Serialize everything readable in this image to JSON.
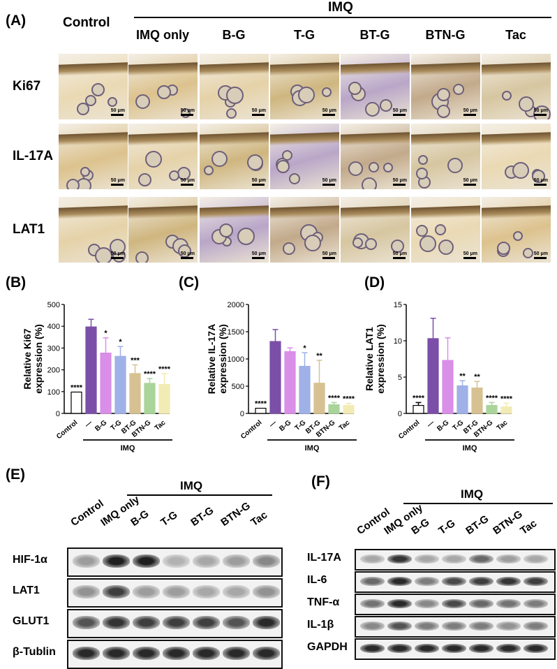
{
  "panels": {
    "A": "(A)",
    "B": "(B)",
    "C": "(C)",
    "D": "(D)",
    "E": "(E)",
    "F": "(F)"
  },
  "histology": {
    "control_title": "Control",
    "group_title": "IMQ",
    "columns": [
      "IMQ only",
      "B-G",
      "T-G",
      "BT-G",
      "BTN-G",
      "Tac"
    ],
    "rows": [
      "Ki67",
      "IL-17A",
      "LAT1"
    ],
    "scale_bar": "50 μm"
  },
  "chart_data": [
    {
      "type": "bar",
      "panel": "B",
      "ylabel_line1": "Relative  Ki67",
      "ylabel_line2": "expression (%)",
      "ylim": [
        0,
        500
      ],
      "yticks": [
        0,
        100,
        200,
        300,
        400,
        500
      ],
      "categories": [
        "Control",
        "—",
        "B-G",
        "T-G",
        "BT-G",
        "BTN-G",
        "Tac"
      ],
      "values": [
        98,
        397,
        277,
        262,
        183,
        138,
        133
      ],
      "errors": [
        0,
        35,
        70,
        45,
        40,
        22,
        50
      ],
      "significance": [
        "****",
        "",
        "*",
        "*",
        "***",
        "****",
        "****"
      ],
      "group_label": "IMQ"
    },
    {
      "type": "bar",
      "panel": "C",
      "ylabel_line1": "Relative  IL-17A",
      "ylabel_line2": "expression (%)",
      "ylim": [
        0,
        2000
      ],
      "yticks": [
        0,
        500,
        1000,
        1500,
        2000
      ],
      "categories": [
        "Control",
        "—",
        "B-G",
        "T-G",
        "BT-G",
        "BTN-G",
        "Tac"
      ],
      "values": [
        95,
        1320,
        1135,
        865,
        555,
        160,
        145
      ],
      "errors": [
        0,
        220,
        70,
        250,
        420,
        40,
        40
      ],
      "significance": [
        "****",
        "",
        "",
        "*",
        "**",
        "****",
        "****"
      ],
      "group_label": "IMQ"
    },
    {
      "type": "bar",
      "panel": "D",
      "ylabel_line1": "Relative  LAT1",
      "ylabel_line2": "expression (%)",
      "ylim": [
        0,
        15
      ],
      "yticks": [
        0,
        5,
        10,
        15
      ],
      "categories": [
        "Control",
        "—",
        "B-G",
        "T-G",
        "BT-G",
        "BTN-G",
        "Tac"
      ],
      "values": [
        1.1,
        10.3,
        7.3,
        3.8,
        3.5,
        1.1,
        0.9
      ],
      "errors": [
        0.4,
        2.8,
        3.1,
        0.7,
        0.9,
        0.4,
        0.5
      ],
      "significance": [
        "****",
        "",
        "",
        "**",
        "**",
        "****",
        "****"
      ],
      "group_label": "IMQ"
    }
  ],
  "colors": {
    "control": "#ffffff",
    "imq": "#7b4fa8",
    "bg": "#d98ee8",
    "tg": "#9fb1e6",
    "btg": "#d7c192",
    "btng": "#a9d49a",
    "tac": "#f2ebb4"
  },
  "blot_E": {
    "group_label": "IMQ",
    "lanes": [
      "Control",
      "IMQ only",
      "B-G",
      "T-G",
      "BT-G",
      "BTN-G",
      "Tac"
    ],
    "rows": [
      {
        "name": "HIF-1α",
        "intensity": [
          0.35,
          0.95,
          0.95,
          0.25,
          0.3,
          0.35,
          0.45
        ]
      },
      {
        "name": "LAT1",
        "intensity": [
          0.4,
          0.8,
          0.35,
          0.35,
          0.3,
          0.3,
          0.4
        ]
      },
      {
        "name": "GLUT1",
        "intensity": [
          0.7,
          0.85,
          0.8,
          0.8,
          0.8,
          0.7,
          0.9
        ]
      },
      {
        "name": "β-Tublin",
        "intensity": [
          0.9,
          0.9,
          0.9,
          0.9,
          0.9,
          0.9,
          0.9
        ]
      }
    ]
  },
  "blot_F": {
    "group_label": "IMQ",
    "lanes": [
      "Control",
      "IMQ only",
      "B-G",
      "T-G",
      "BT-G",
      "BTN-G",
      "Tac"
    ],
    "rows": [
      {
        "name": "IL-17A",
        "intensity": [
          0.3,
          0.85,
          0.3,
          0.3,
          0.6,
          0.35,
          0.3
        ]
      },
      {
        "name": "IL-6",
        "intensity": [
          0.6,
          0.9,
          0.5,
          0.75,
          0.8,
          0.85,
          0.8
        ]
      },
      {
        "name": "TNF-α",
        "intensity": [
          0.55,
          0.9,
          0.45,
          0.75,
          0.6,
          0.55,
          0.5
        ]
      },
      {
        "name": "IL-1β",
        "intensity": [
          0.45,
          0.7,
          0.5,
          0.5,
          0.5,
          0.4,
          0.5
        ]
      },
      {
        "name": "GAPDH",
        "intensity": [
          0.9,
          0.9,
          0.9,
          0.9,
          0.9,
          0.9,
          0.9
        ]
      }
    ]
  }
}
